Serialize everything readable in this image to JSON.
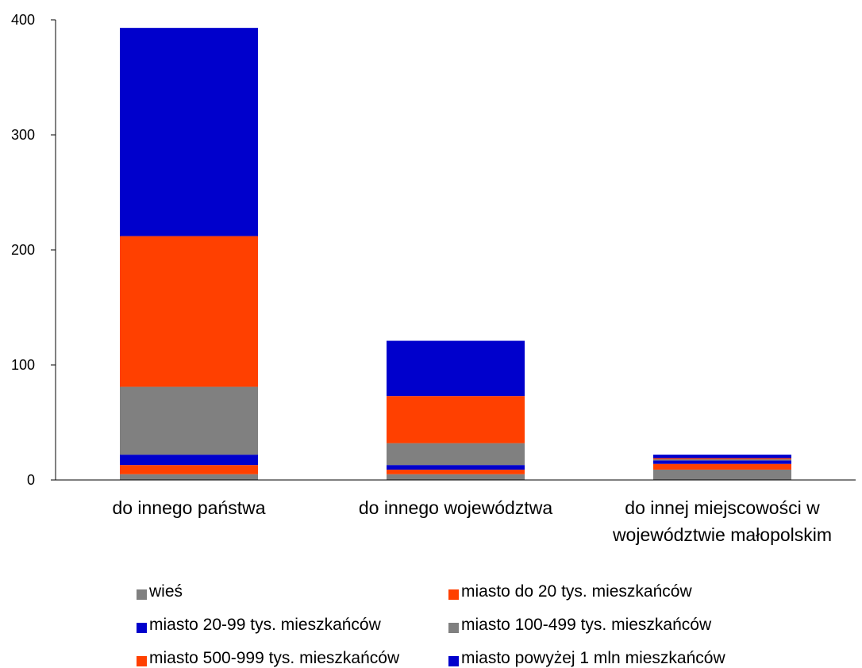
{
  "chart_data": {
    "type": "bar",
    "stacked": true,
    "categories": [
      "do innego państwa",
      "do innego województwa",
      "do innej miejscowości w województwie małopolskim"
    ],
    "category_lines": [
      [
        "do innego państwa"
      ],
      [
        "do innego województwa"
      ],
      [
        "do innej miejscowości w",
        "województwie małopolskim"
      ]
    ],
    "series": [
      {
        "name": "wieś",
        "color": "#808080",
        "values": [
          5,
          5,
          9
        ]
      },
      {
        "name": "miasto do 20 tys. mieszkańców",
        "color": "#ff4000",
        "values": [
          8,
          4,
          5
        ]
      },
      {
        "name": "miasto 20-99 tys. mieszkańców",
        "color": "#0000cc",
        "values": [
          9,
          4,
          3
        ]
      },
      {
        "name": "miasto 100-499 tys. mieszkańców",
        "color": "#808080",
        "values": [
          59,
          19,
          1
        ]
      },
      {
        "name": "miasto 500-999 tys. mieszkańców",
        "color": "#ff4000",
        "values": [
          131,
          41,
          1
        ]
      },
      {
        "name": "miasto powyżej 1 mln mieszkańców",
        "color": "#0000cc",
        "values": [
          181,
          48,
          3
        ]
      }
    ],
    "ylim": [
      0,
      400
    ],
    "yticks": [
      0,
      100,
      200,
      300,
      400
    ],
    "legend_position": "bottom",
    "grid": false
  }
}
